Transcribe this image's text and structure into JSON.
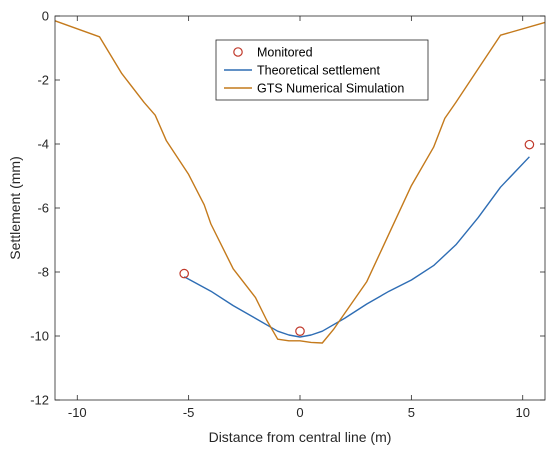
{
  "chart_data": {
    "type": "line",
    "xlabel": "Distance from central line (m)",
    "ylabel": "Settlement (mm)",
    "xlim": [
      -11,
      11
    ],
    "ylim": [
      -12,
      0
    ],
    "xticks": [
      -10,
      -5,
      0,
      5,
      10
    ],
    "yticks": [
      0,
      -2,
      -4,
      -6,
      -8,
      -10,
      -12
    ],
    "grid": false,
    "legend_position": "top-center",
    "series": [
      {
        "name": "Monitored",
        "kind": "scatter",
        "color": "#c0392b",
        "x": [
          -5.2,
          0,
          10.3
        ],
        "y": [
          -8.05,
          -9.85,
          -4.02
        ]
      },
      {
        "name": "Theoretical settlement",
        "kind": "line",
        "color": "#2e6db4",
        "x": [
          -5.2,
          -4,
          -3,
          -2,
          -1,
          -0.5,
          0,
          0.5,
          1,
          2,
          3,
          4,
          5,
          6,
          7,
          8,
          9,
          10.3
        ],
        "y": [
          -8.15,
          -8.6,
          -9.05,
          -9.45,
          -9.85,
          -9.97,
          -10.03,
          -9.97,
          -9.85,
          -9.45,
          -9.0,
          -8.6,
          -8.25,
          -7.8,
          -7.15,
          -6.3,
          -5.35,
          -4.4
        ]
      },
      {
        "name": "GTS Numerical Simulation",
        "kind": "line",
        "color": "#c47a1c",
        "x": [
          -11,
          -9,
          -8,
          -7,
          -6.5,
          -6,
          -5,
          -4.3,
          -4,
          -3,
          -2,
          -1.5,
          -1,
          -0.5,
          0,
          0.5,
          1,
          1.5,
          2,
          3,
          4,
          5,
          6,
          6.5,
          7,
          8,
          9,
          11
        ],
        "y": [
          -0.15,
          -0.65,
          -1.8,
          -2.7,
          -3.1,
          -3.9,
          -4.95,
          -5.9,
          -6.5,
          -7.9,
          -8.8,
          -9.5,
          -10.1,
          -10.15,
          -10.15,
          -10.2,
          -10.22,
          -9.8,
          -9.3,
          -8.3,
          -6.8,
          -5.3,
          -4.1,
          -3.2,
          -2.7,
          -1.65,
          -0.6,
          -0.2
        ]
      }
    ]
  }
}
